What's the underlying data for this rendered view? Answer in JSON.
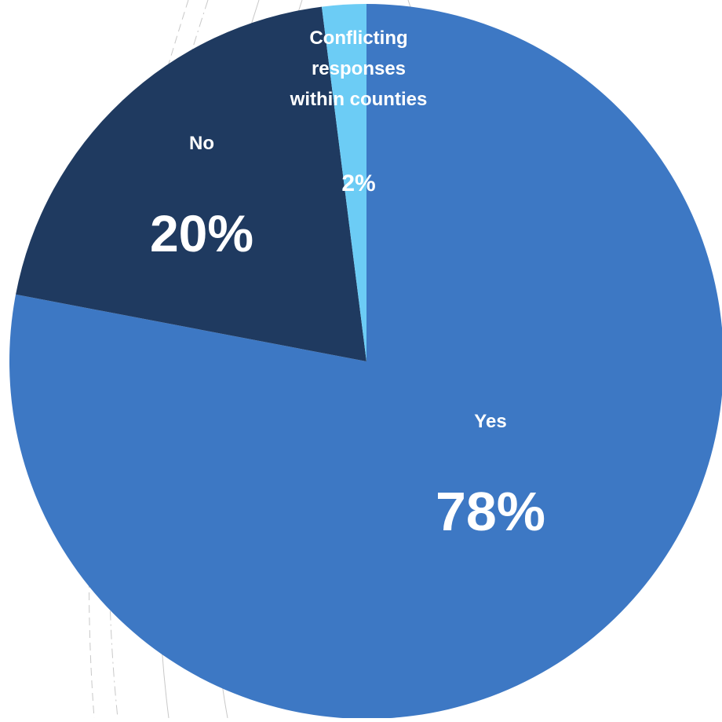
{
  "chart_data": {
    "type": "pie",
    "title": "",
    "slices": [
      {
        "label": "Yes",
        "value": 78,
        "percent_label": "78%",
        "color": "#3d78c4"
      },
      {
        "label": "No",
        "value": 20,
        "percent_label": "20%",
        "color": "#1f3a60"
      },
      {
        "label": "Conflicting responses within counties",
        "label_lines": [
          "Conflicting",
          "responses",
          "within counties"
        ],
        "value": 2,
        "percent_label": "2%",
        "color": "#6cccf5"
      }
    ],
    "start_angle": "12 o'clock",
    "direction": "clockwise",
    "legend": "none",
    "data_labels": "inside slices"
  }
}
